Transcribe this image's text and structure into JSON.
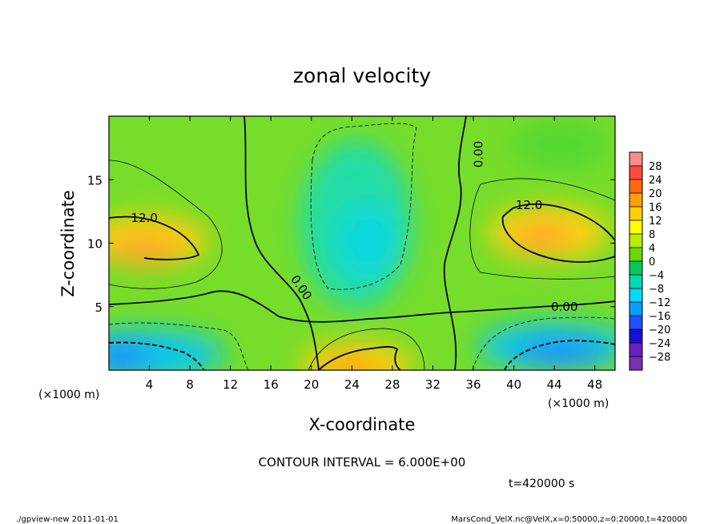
{
  "chart_data": {
    "type": "heatmap",
    "title": "zonal velocity",
    "xlabel": "X-coordinate",
    "ylabel": "Z-coordinate",
    "x_unit_label": "(×1000 m)",
    "y_unit_label": "(×1000 m)",
    "xlim": [
      0,
      50
    ],
    "ylim": [
      0,
      20
    ],
    "x_ticks": [
      4,
      8,
      12,
      16,
      20,
      24,
      28,
      32,
      36,
      40,
      44,
      48
    ],
    "y_ticks": [
      5,
      10,
      15
    ],
    "colorbar": {
      "labels": [
        "28",
        "24",
        "20",
        "16",
        "12",
        "8",
        "4",
        "0",
        "−4",
        "−8",
        "−12",
        "−16",
        "−20",
        "−24",
        "−28"
      ],
      "colors": [
        "#ff8c8c",
        "#ff4a3a",
        "#ff6a10",
        "#ffa000",
        "#ffd000",
        "#ffff00",
        "#b8ee00",
        "#6ad800",
        "#00c95a",
        "#00d8b0",
        "#00d8ff",
        "#00a0ff",
        "#2050ff",
        "#1a10d0",
        "#6a20c0",
        "#7a30b0"
      ]
    },
    "contour_labels": [
      {
        "text": "12.0",
        "x": 3.5,
        "y": 12.0
      },
      {
        "text": "12.0",
        "x": 41.5,
        "y": 13.0
      },
      {
        "text": "0.00",
        "x": 36.5,
        "y": 17.0
      },
      {
        "text": "0.00",
        "x": 19.0,
        "y": 6.5
      },
      {
        "text": "0.00",
        "x": 45.0,
        "y": 5.0
      }
    ],
    "field_regions": [
      {
        "name": "jet-left",
        "x": 3.5,
        "z": 9.5,
        "value": 14
      },
      {
        "name": "jet-right",
        "x": 43.5,
        "z": 11.0,
        "value": 14
      },
      {
        "name": "center-low",
        "x": 26.5,
        "z": 10.5,
        "value": -8
      },
      {
        "name": "bottom-left",
        "x": 2.0,
        "z": 1.2,
        "value": -14
      },
      {
        "name": "bottom-right",
        "x": 45.0,
        "z": 1.5,
        "value": -14
      },
      {
        "name": "bottom-center",
        "x": 24.5,
        "z": 1.0,
        "value": 16
      }
    ],
    "contour_interval_text": "CONTOUR INTERVAL = 6.000E+00",
    "time_text": "t=420000 s"
  },
  "footer": {
    "left": "./gpview-new  2011-01-01",
    "right": "MarsCond_VelX.nc@VelX,x=0:50000,z=0:20000,t=420000"
  }
}
